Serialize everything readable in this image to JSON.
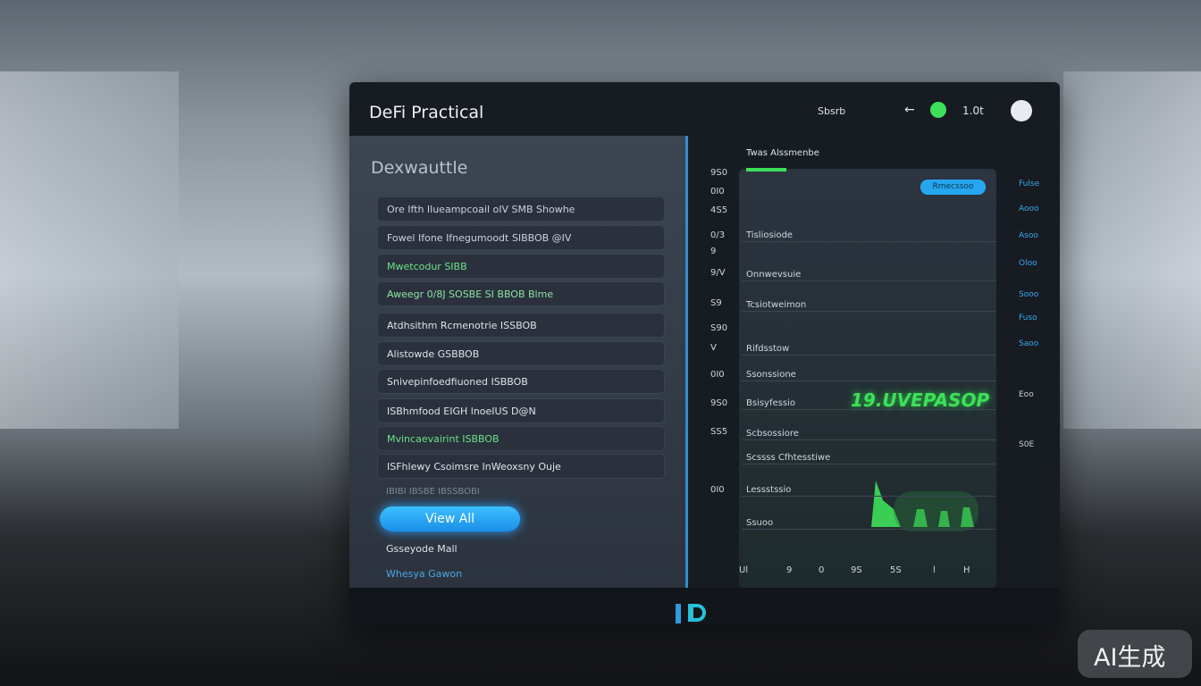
{
  "header": {
    "title": "DeFi Practical",
    "nav": "Sbsrb",
    "back": "←",
    "value": "1.0t"
  },
  "sidebar": {
    "title": "Dexwauttle",
    "items": [
      {
        "text": "Ore Ifth Ilueampcoail oIV SMB Showhe",
        "color": "#c9d2de"
      },
      {
        "text": "Fowel Ifone Ifnegumoodt SIBBOB @IV",
        "color": "#c9d2de"
      },
      {
        "text": "Mwetcodur SIBB",
        "color": "#6fe08a"
      },
      {
        "text": "Aweegr 0/8J SOSBE SI BBOB Blme",
        "color": "#8fe0a6"
      },
      {
        "text": "Atdhsithm Rcmenotrie ISSBOB",
        "color": "#dde3ea"
      },
      {
        "text": "Alistowde GSBBOB",
        "color": "#dde3ea"
      },
      {
        "text": "Snivepinfoedfiuoned ISBBOB",
        "color": "#dde3ea"
      },
      {
        "text": "ISBhmfood EIGH lnoeIUS D@N",
        "color": "#dde3ea"
      },
      {
        "text": "Mvincaevairint ISBBOB",
        "color": "#6fe08a"
      },
      {
        "text": "ISFhlewy Csoimsre InWeoxsny Ouje",
        "color": "#dde3ea"
      }
    ],
    "note": "IBIBI IBSBE IBSSBOBI",
    "button": "View All",
    "footer": [
      "Gsseyode Mall",
      "Whesya Gawon"
    ]
  },
  "chart": {
    "title": "Twas Alssmenbe",
    "badge": "Rmecssoo",
    "headline": "19.UVEPASOP",
    "left_labels": [
      "9S0",
      "0I0",
      "4S5",
      "0/3",
      "9",
      "9/V",
      "S9",
      "S90",
      "V",
      "0I0",
      "9S0",
      "SS5",
      "0I0"
    ],
    "rows": [
      "Tisliosiode",
      "Onnwevsuie",
      "Tcsiotweimon",
      "Rifdsstow",
      "Ssonssione",
      "Bsisyfessio",
      "Scbsossiore",
      "Scssss Cfhtesstiwe",
      "Lessstssio",
      "Ssuoo"
    ],
    "bottom_labels": [
      "Ul",
      "9",
      "0",
      "9S",
      "5S",
      "l",
      "H"
    ],
    "right_labels": [
      "Fulse",
      "Aooo",
      "Asoo",
      "Oloo",
      "Sooo",
      "Fuso",
      "Saoo",
      "Eoo",
      "S0E"
    ]
  },
  "watermark": "AI生成"
}
